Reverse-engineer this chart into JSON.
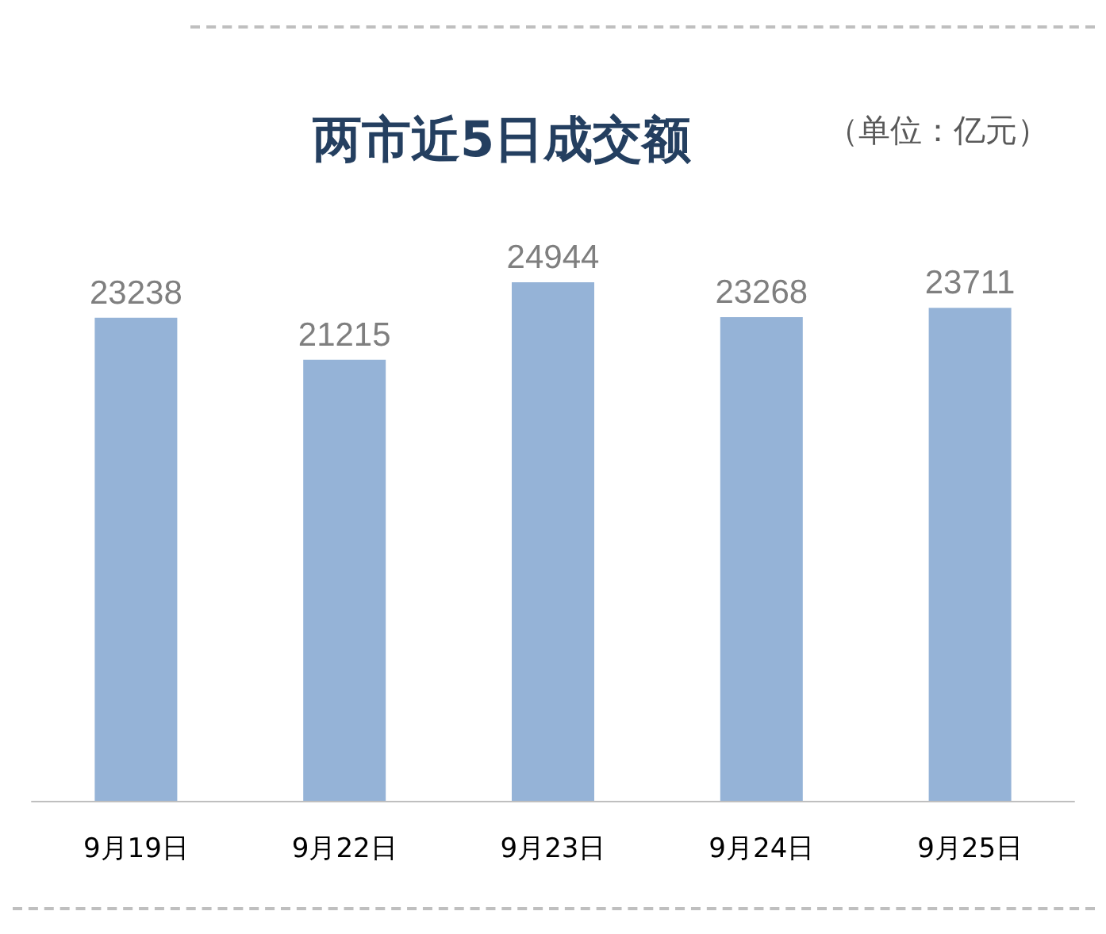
{
  "chart_data": {
    "type": "bar",
    "title": "两市近5日成交额",
    "categories": [
      "9月19日",
      "9月22日",
      "9月23日",
      "9月24日",
      "9月25日"
    ],
    "values": [
      23238,
      21215,
      24944,
      23268,
      23711
    ],
    "color": "#95b3d7",
    "data_labels": true,
    "annotations": [
      "（单位：亿元）"
    ]
  }
}
